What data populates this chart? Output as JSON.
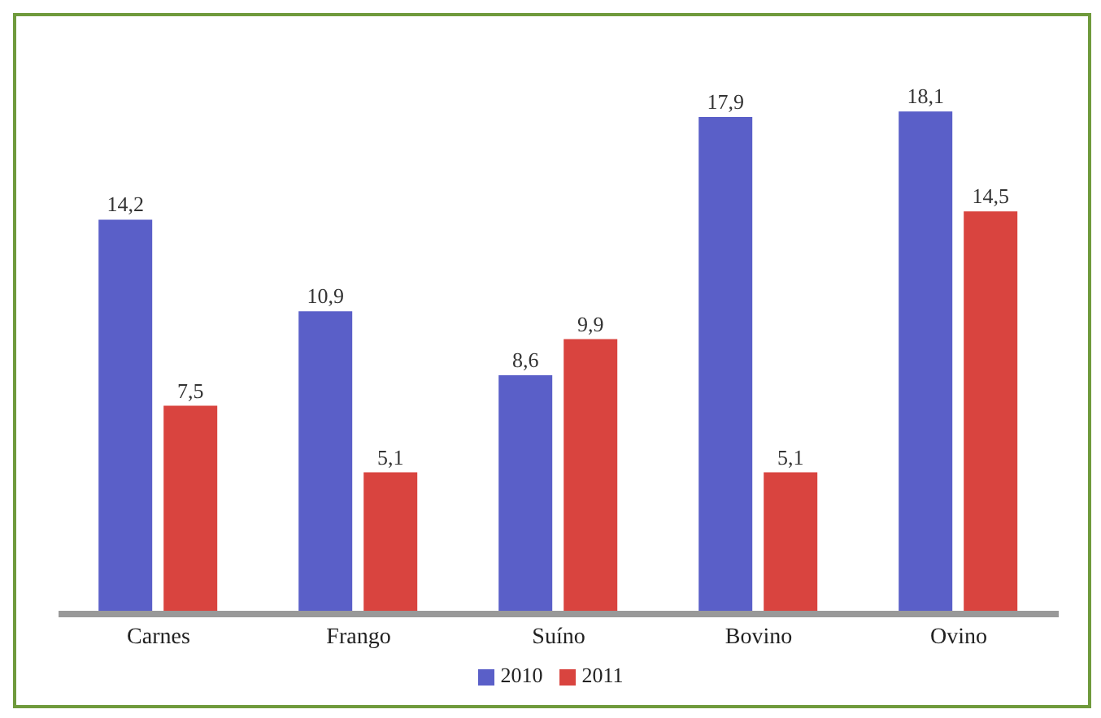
{
  "chart_data": {
    "type": "bar",
    "categories": [
      "Carnes",
      "Frango",
      "Suíno",
      "Bovino",
      "Ovino"
    ],
    "series": [
      {
        "name": "2010",
        "color": "#5a5fc8",
        "values": [
          14.2,
          10.9,
          8.6,
          17.9,
          18.1
        ],
        "value_labels": [
          "14,2",
          "10,9",
          "8,6",
          "17,9",
          "18,1"
        ]
      },
      {
        "name": "2011",
        "color": "#d9443f",
        "values": [
          7.5,
          5.1,
          9.9,
          5.1,
          14.5
        ],
        "value_labels": [
          "7,5",
          "5,1",
          "9,9",
          "5,1",
          "14,5"
        ]
      }
    ],
    "legend": "bottom",
    "grid": false
  }
}
